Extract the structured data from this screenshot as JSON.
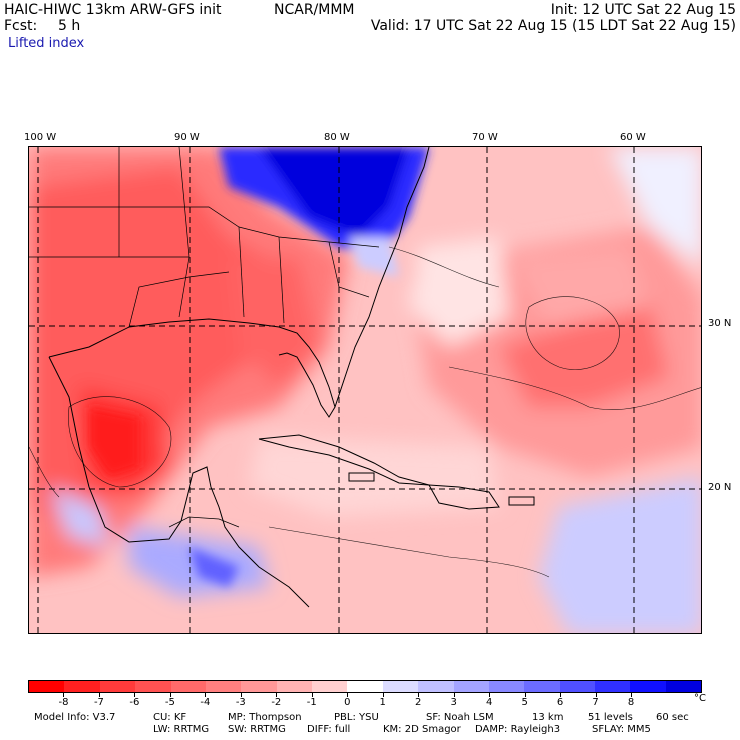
{
  "header": {
    "model_title": "HAIC-HIWC 13km ARW-GFS init",
    "org": "NCAR/MMM",
    "init": "Init: 12 UTC Sat 22 Aug 15",
    "fcst_label": "Fcst:",
    "fcst_value": "5 h",
    "valid": "Valid: 17 UTC Sat 22 Aug 15 (15 LDT Sat 22 Aug 15)",
    "field": "Lifted index"
  },
  "map": {
    "lon_labels": [
      "100 W",
      "90 W",
      "80 W",
      "70 W",
      "60 W"
    ],
    "lat_labels": [
      "30 N",
      "20 N"
    ]
  },
  "colorbar": {
    "labels": [
      "-8",
      "-7",
      "-6",
      "-5",
      "-4",
      "-3",
      "-2",
      "-1",
      "0",
      "1",
      "2",
      "3",
      "4",
      "5",
      "6",
      "7",
      "8"
    ],
    "unit": "°C",
    "colors": [
      "#ff0000",
      "#ff2020",
      "#ff3b3b",
      "#ff5252",
      "#ff6a6a",
      "#ff8080",
      "#ff9898",
      "#ffb3b3",
      "#ffd0d0",
      "#ffffff",
      "#dcdcff",
      "#c0c0ff",
      "#a4a4ff",
      "#8888ff",
      "#6c6cff",
      "#5050ff",
      "#3030ff",
      "#1010ff",
      "#0000e0"
    ]
  },
  "model_info": {
    "line1": [
      "Model Info: V3.7",
      "CU: KF",
      "MP: Thompson",
      "PBL: YSU",
      "SF: Noah LSM",
      "13 km",
      "51 levels",
      "60 sec"
    ],
    "line2": [
      "LW: RRTMG",
      "SW: RRTMG",
      "DIFF: full",
      "KM: 2D Smagor",
      "DAMP: Rayleigh3",
      "SFLAY: MM5"
    ]
  }
}
